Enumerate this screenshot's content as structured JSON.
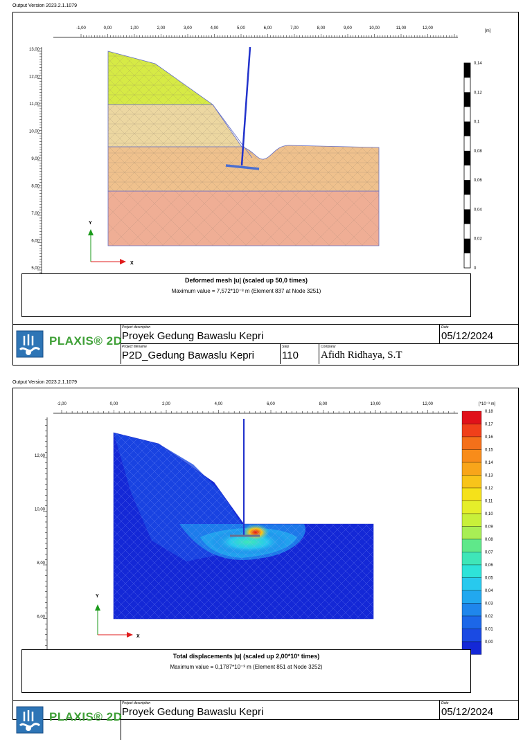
{
  "colors": {
    "soil_green": "#d6ea45",
    "soil_beige": "#ecd7a1",
    "soil_orange": "#efc18d",
    "soil_pink": "#efae95",
    "structure_blue": "#2233cc",
    "arrow_green": "#1a9a1a",
    "arrow_red": "#e01c1c",
    "logo_green": "#3fa037",
    "logo_blue": "#2e75b6"
  },
  "page1": {
    "output_version": "Output Version 2023.2.1.1079",
    "x_unit": "[m]",
    "x_ticks": [
      "-1,00",
      "0,00",
      "1,00",
      "2,00",
      "3,00",
      "4,00",
      "5,00",
      "6,00",
      "7,00",
      "8,00",
      "9,00",
      "10,00",
      "11,00",
      "12,00"
    ],
    "y_ticks": [
      "13,00",
      "12,00",
      "11,00",
      "10,00",
      "9,00",
      "8,00",
      "7,00",
      "6,00",
      "5,00"
    ],
    "scale_labels": [
      "0,14",
      "0,12",
      "0,1",
      "0,08",
      "0,06",
      "0,04",
      "0,02",
      "0"
    ],
    "axis_y": "Y",
    "axis_x": "X",
    "caption_title": "Deformed mesh |u| (scaled up 50,0 times)",
    "caption_max": "Maximum value = 7,572*10⁻³ m (Element 837 at Node 3251)"
  },
  "page2": {
    "output_version": "Output Version 2023.2.1.1079",
    "x_unit": "[*10⁻³ m]",
    "x_ticks": [
      "-2,00",
      "0,00",
      "2,00",
      "4,00",
      "6,00",
      "8,00",
      "10,00",
      "12,00"
    ],
    "y_ticks": [
      "12,00",
      "10,00",
      "8,00",
      "6,00"
    ],
    "legend_labels": [
      "0,18",
      "0,17",
      "0,16",
      "0,15",
      "0,14",
      "0,13",
      "0,12",
      "0,11",
      "0,10",
      "0,09",
      "0,08",
      "0,07",
      "0,06",
      "0,05",
      "0,04",
      "0,03",
      "0,02",
      "0,01",
      "0,00"
    ],
    "legend_colors": [
      "#e0111a",
      "#f0401a",
      "#f4701a",
      "#f88c1a",
      "#f8a51a",
      "#f8c41a",
      "#f5e11a",
      "#e5ee2a",
      "#c8f03a",
      "#a8ee55",
      "#5fe88a",
      "#3fe6b8",
      "#2ee3d9",
      "#28c9ee",
      "#22a8ef",
      "#1f86ec",
      "#1c67e8",
      "#1a4ae3",
      "#1428d6"
    ],
    "axis_y": "Y",
    "axis_x": "X",
    "caption_title": "Total displacements |u| (scaled up 2,00*10³ times)",
    "caption_max": "Maximum value = 0,1787*10⁻³ m (Element 851 at Node 3252)"
  },
  "footer": {
    "logo_text": "PLAXIS® 2D",
    "project_description_label": "Project description",
    "project_description": "Proyek Gedung Bawaslu Kepri",
    "project_filename_label": "Project filename",
    "project_filename": "P2D_Gedung Bawaslu Kepri",
    "step_label": "Step",
    "step": "110",
    "company_label": "Company",
    "company": "Afidh Ridhaya, S.T",
    "date_label": "Date",
    "date": "05/12/2024"
  }
}
